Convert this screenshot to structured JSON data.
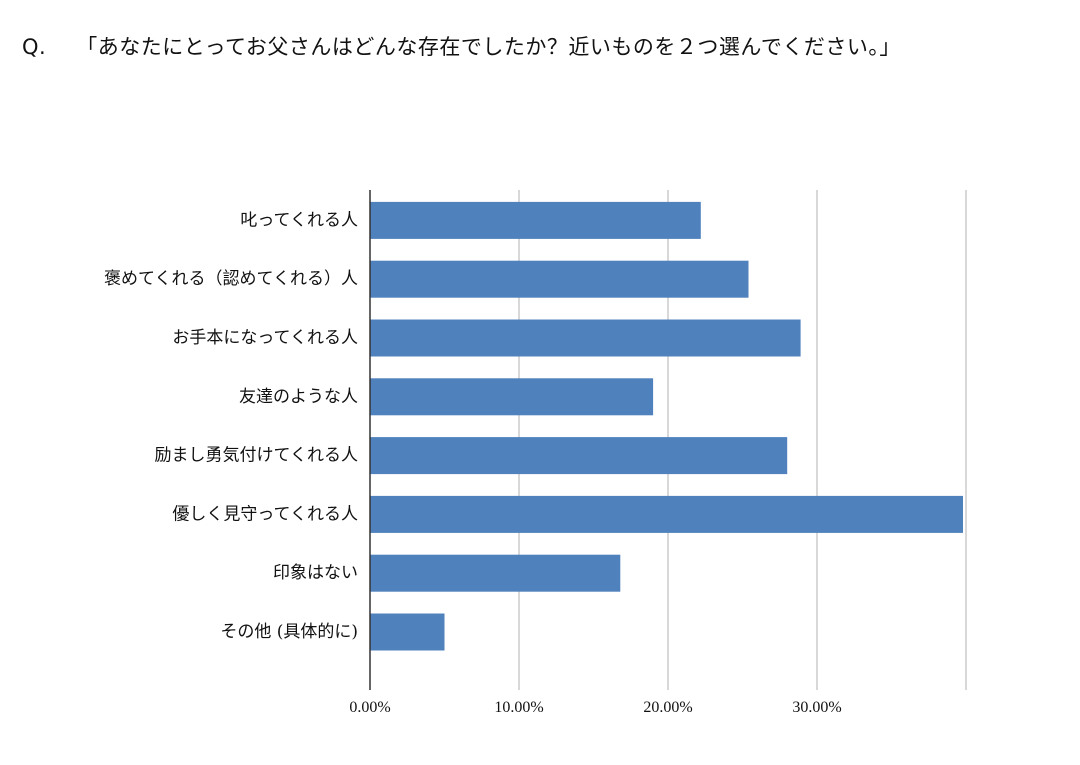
{
  "question": {
    "prefix": "Q.",
    "text": "「あなたにとってお父さんはどんな存在でしたか？近いものを２つ選んでください。」"
  },
  "chart_data": {
    "type": "bar",
    "orientation": "horizontal",
    "categories": [
      "叱ってくれる人",
      "褒めてくれる（認めてくれる）人",
      "お手本になってくれる人",
      "友達のような人",
      "励まし勇気付けてくれる人",
      "優しく見守ってくれる人",
      "印象はない",
      "その他 (具体的に)"
    ],
    "values": [
      22.2,
      25.4,
      28.9,
      19.0,
      28.0,
      39.8,
      16.8,
      5.0
    ],
    "x_ticks": [
      "0.00%",
      "10.00%",
      "20.00%",
      "30.00%"
    ],
    "xlim": [
      0,
      40
    ],
    "grid": true,
    "bar_color": "#4f81bd",
    "grid_color": "#cccccc",
    "axis_color": "#333333"
  }
}
